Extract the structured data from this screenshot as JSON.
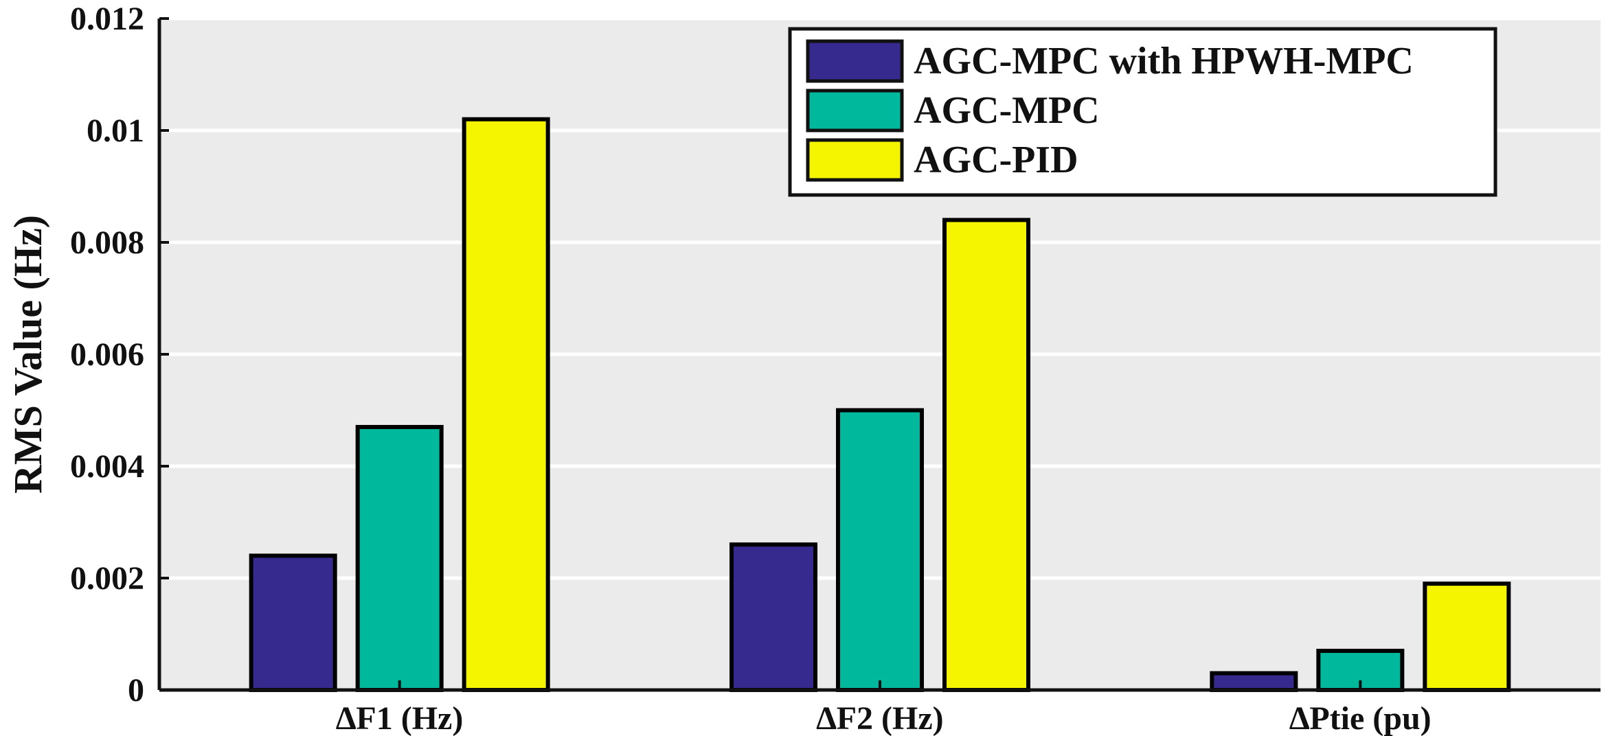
{
  "chart_data": {
    "type": "bar",
    "categories": [
      "∆F1 (Hz)",
      "∆F2 (Hz)",
      "∆Ptie (pu)"
    ],
    "series": [
      {
        "name": "AGC-MPC with HPWH-MPC",
        "color": "#362a8e",
        "values": [
          0.0024,
          0.0026,
          0.0003
        ]
      },
      {
        "name": "AGC-MPC",
        "color": "#00b89c",
        "values": [
          0.0047,
          0.005,
          0.0007
        ]
      },
      {
        "name": "AGC-PID",
        "color": "#f5f500",
        "values": [
          0.0102,
          0.0084,
          0.0019
        ]
      }
    ],
    "ylabel": "RMS Value (Hz)",
    "ylim": [
      0,
      0.012
    ],
    "yticks": [
      0,
      0.002,
      0.004,
      0.006,
      0.008,
      0.01,
      0.012
    ],
    "ytick_labels": [
      "0",
      "0.002",
      "0.004",
      "0.006",
      "0.008",
      "0.01",
      "0.012"
    ],
    "grid": "horizontal",
    "legend_position": "top-right",
    "colors": {
      "plot_background": "#ebebeb",
      "grid": "#ffffff",
      "bar_edge": "#000000"
    }
  }
}
